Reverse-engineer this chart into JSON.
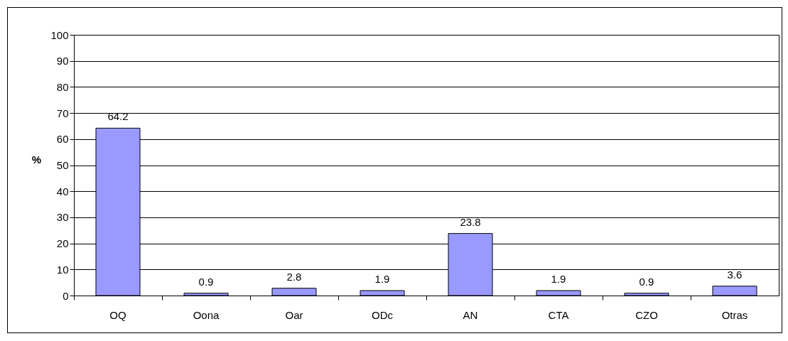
{
  "chart_data": {
    "type": "bar",
    "ylabel": "%",
    "categories": [
      "OQ",
      "Oona",
      "Oar",
      "ODc",
      "AN",
      "CTA",
      "CZO",
      "Otras"
    ],
    "values": [
      64.2,
      0.9,
      2.8,
      1.9,
      23.8,
      1.9,
      0.9,
      3.6
    ],
    "color": "#9999ff",
    "ylim": [
      0,
      100
    ],
    "yticks": [
      0,
      10,
      20,
      30,
      40,
      50,
      60,
      70,
      80,
      90,
      100
    ],
    "grid": "y",
    "data_labels": true
  }
}
